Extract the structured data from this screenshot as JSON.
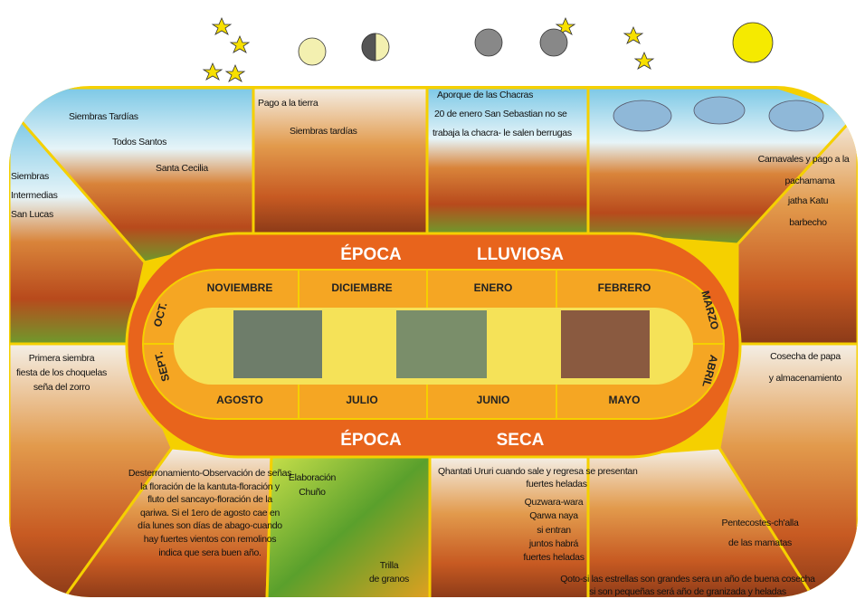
{
  "season_labels": {
    "top": [
      "ÉPOCA",
      "LLUVIOSA"
    ],
    "bottom": [
      "ÉPOCA",
      "SECA"
    ]
  },
  "months": {
    "top": [
      "NOVIEMBRE",
      "DICIEMBRE",
      "ENERO",
      "FEBRERO"
    ],
    "right": [
      "MARZO",
      "ABRIL"
    ],
    "bottom": [
      "AGOSTO",
      "JULIO",
      "JUNIO",
      "MAYO"
    ],
    "left": [
      "OCT.",
      "SEPT."
    ]
  },
  "panels": [
    {
      "lines": [
        "Siembras Tardías",
        "Todos Santos",
        "Santa Cecilia"
      ]
    },
    {
      "lines": [
        "Pago a la tierra",
        "Siembras tardías"
      ]
    },
    {
      "lines": [
        "Aporque de las Chacras",
        "20 de enero San Sebastian no se",
        "trabaja la chacra- le salen berrugas"
      ]
    },
    {
      "lines": [
        "Carnavales y pago a la",
        "pachamama",
        "jatha Katu",
        "barbecho"
      ]
    },
    {
      "lines": [
        "Siembras",
        "Intermedias",
        "San Lucas"
      ]
    },
    {
      "lines": [
        "Primera siembra",
        "fiesta de los choquelas",
        "seña del zorro"
      ]
    },
    {
      "lines": [
        "Cosecha de papa",
        "y almacenamiento"
      ]
    },
    {
      "lines": [
        "Desterronamiento-Observación de señas",
        "la floración de la kantuta-floración y",
        "fluto del sancayo-floración de la",
        "qariwa. Si el 1ero de agosto cae en",
        "día lunes son días de abago-cuando",
        "hay fuertes vientos con remolinos",
        "indica que sera buen año."
      ]
    },
    {
      "lines": [
        "Elaboración",
        "Chuño",
        "Trilla",
        "de granos"
      ]
    },
    {
      "lines": [
        "Qhantati Ururi cuando sale y regresa se presentan",
        "fuertes heladas"
      ]
    },
    {
      "lines": [
        "Quzwara-wara",
        "Qarwa naya",
        "si entran",
        "juntos habrá",
        "fuertes heladas"
      ]
    },
    {
      "lines": [
        "Pentecostes-ch'alla",
        "de las mamatas"
      ]
    },
    {
      "lines": [
        "Qoto-si las estrellas son grandes sera un año de buena cosecha",
        "si son pequeñas será año de granizada y heladas"
      ]
    }
  ]
}
